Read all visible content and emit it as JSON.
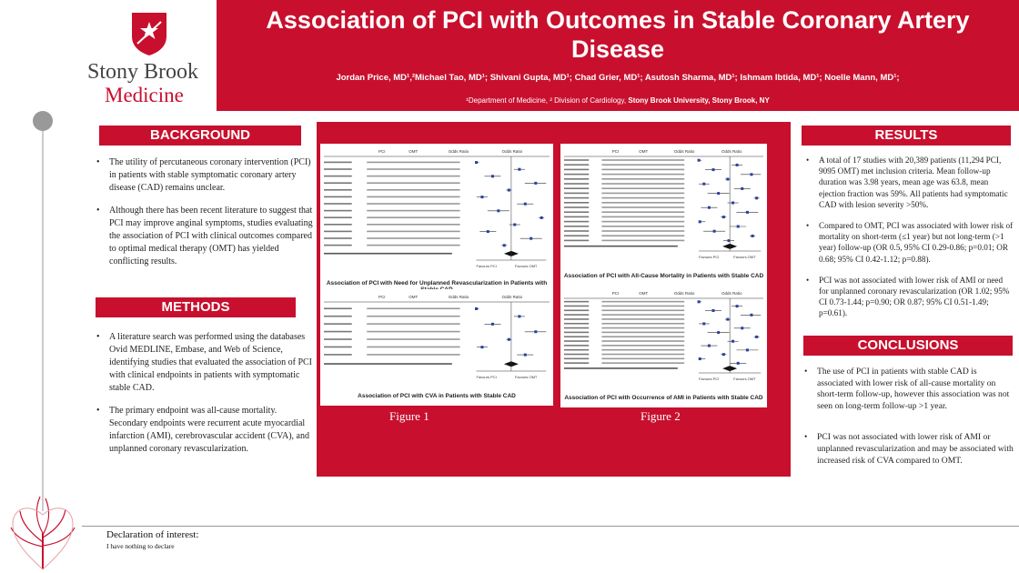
{
  "header": {
    "title": "Association of PCI with Outcomes in Stable Coronary Artery Disease",
    "authors": "Jordan Price, MD¹,²Michael Tao, MD¹; Shivani Gupta, MD¹; Chad Grier, MD¹; Asutosh Sharma, MD¹; Ishmam Ibtida, MD¹; Noelle Mann, MD¹;",
    "affiliation_prefix": "¹Department of Medicine, ² Division of Cardiology, ",
    "affiliation_bold": "Stony Brook University, Stony Brook, NY"
  },
  "logo": {
    "name": "Stony Brook",
    "sub": "Medicine"
  },
  "background": {
    "heading": "BACKGROUND",
    "bullets": [
      "The utility of percutaneous coronary intervention (PCI) in patients with stable symptomatic coronary artery disease (CAD) remains unclear.",
      "Although there has been recent literature to suggest that PCI may improve anginal symptoms, studies evaluating the association of PCI with clinical outcomes compared to optimal medical therapy (OMT) has yielded conflicting results."
    ]
  },
  "methods": {
    "heading": "METHODS",
    "bullets": [
      "A literature search was performed using the databases Ovid MEDLINE, Embase, and Web of Science, identifying studies that evaluated the association of PCI with clinical endpoints in patients with symptomatic stable CAD.",
      "The primary endpoint was all-cause mortality. Secondary endpoints were recurrent acute myocardial infarction (AMI), cerebrovascular accident (CVA), and unplanned coronary revascularization."
    ]
  },
  "results": {
    "heading": "RESULTS",
    "bullets": [
      "A total of 17 studies with 20,389 patients (11,294 PCI, 9095 OMT) met inclusion criteria. Mean follow-up duration was 3.98 years, mean age was 63.8, mean ejection fraction was 59%. All patients had symptomatic CAD with lesion severity >50%.",
      "Compared to OMT, PCI was associated with lower risk of mortality on short-term (≤1 year) but not long-term (>1 year) follow-up (OR 0.5, 95% CI 0.29-0.86; p=0.01; OR 0.68; 95% CI 0.42-1.12; p=0.88).",
      "PCI was not associated with lower risk of AMI or need for unplanned coronary revascularization (OR 1.02; 95% CI 0.73-1.44; p=0.90; OR 0.87; 95% CI 0.51-1.49; p=0.61)."
    ]
  },
  "conclusions": {
    "heading": "CONCLUSIONS",
    "bullets": [
      "The use of PCI in patients with stable CAD is associated with lower risk of all-cause mortality on short-term follow-up, however this association was not seen on long-term follow-up >1 year.",
      "PCI was not associated with lower risk of AMI or unplanned revascularization and may be associated with increased risk of CVA compared to OMT."
    ]
  },
  "figures": {
    "fig1_label": "Figure 1",
    "fig2_label": "Figure 2",
    "caption_revasc": "Association of PCI with Need for Unplanned Revascularization in Patients with Stable CAD",
    "caption_cva": "Association of PCI with CVA in Patients with Stable CAD",
    "caption_mortality": "Association of PCI with All-Cause Mortality in Patients with Stable CAD",
    "caption_ami": "Association of PCI with Occurrence of AMI in Patients with Stable CAD",
    "forest_header_pci": "PCI",
    "forest_header_omt": "OMT",
    "forest_header_or": "Odds Ratio",
    "forest_axis_left": "Favours PCI",
    "forest_axis_right": "Favours OMT"
  },
  "declaration": {
    "title": "Declaration of interest:",
    "text": "I have nothing to declare"
  },
  "colors": {
    "brand_red": "#c8102e",
    "accent_grey": "#999999"
  }
}
